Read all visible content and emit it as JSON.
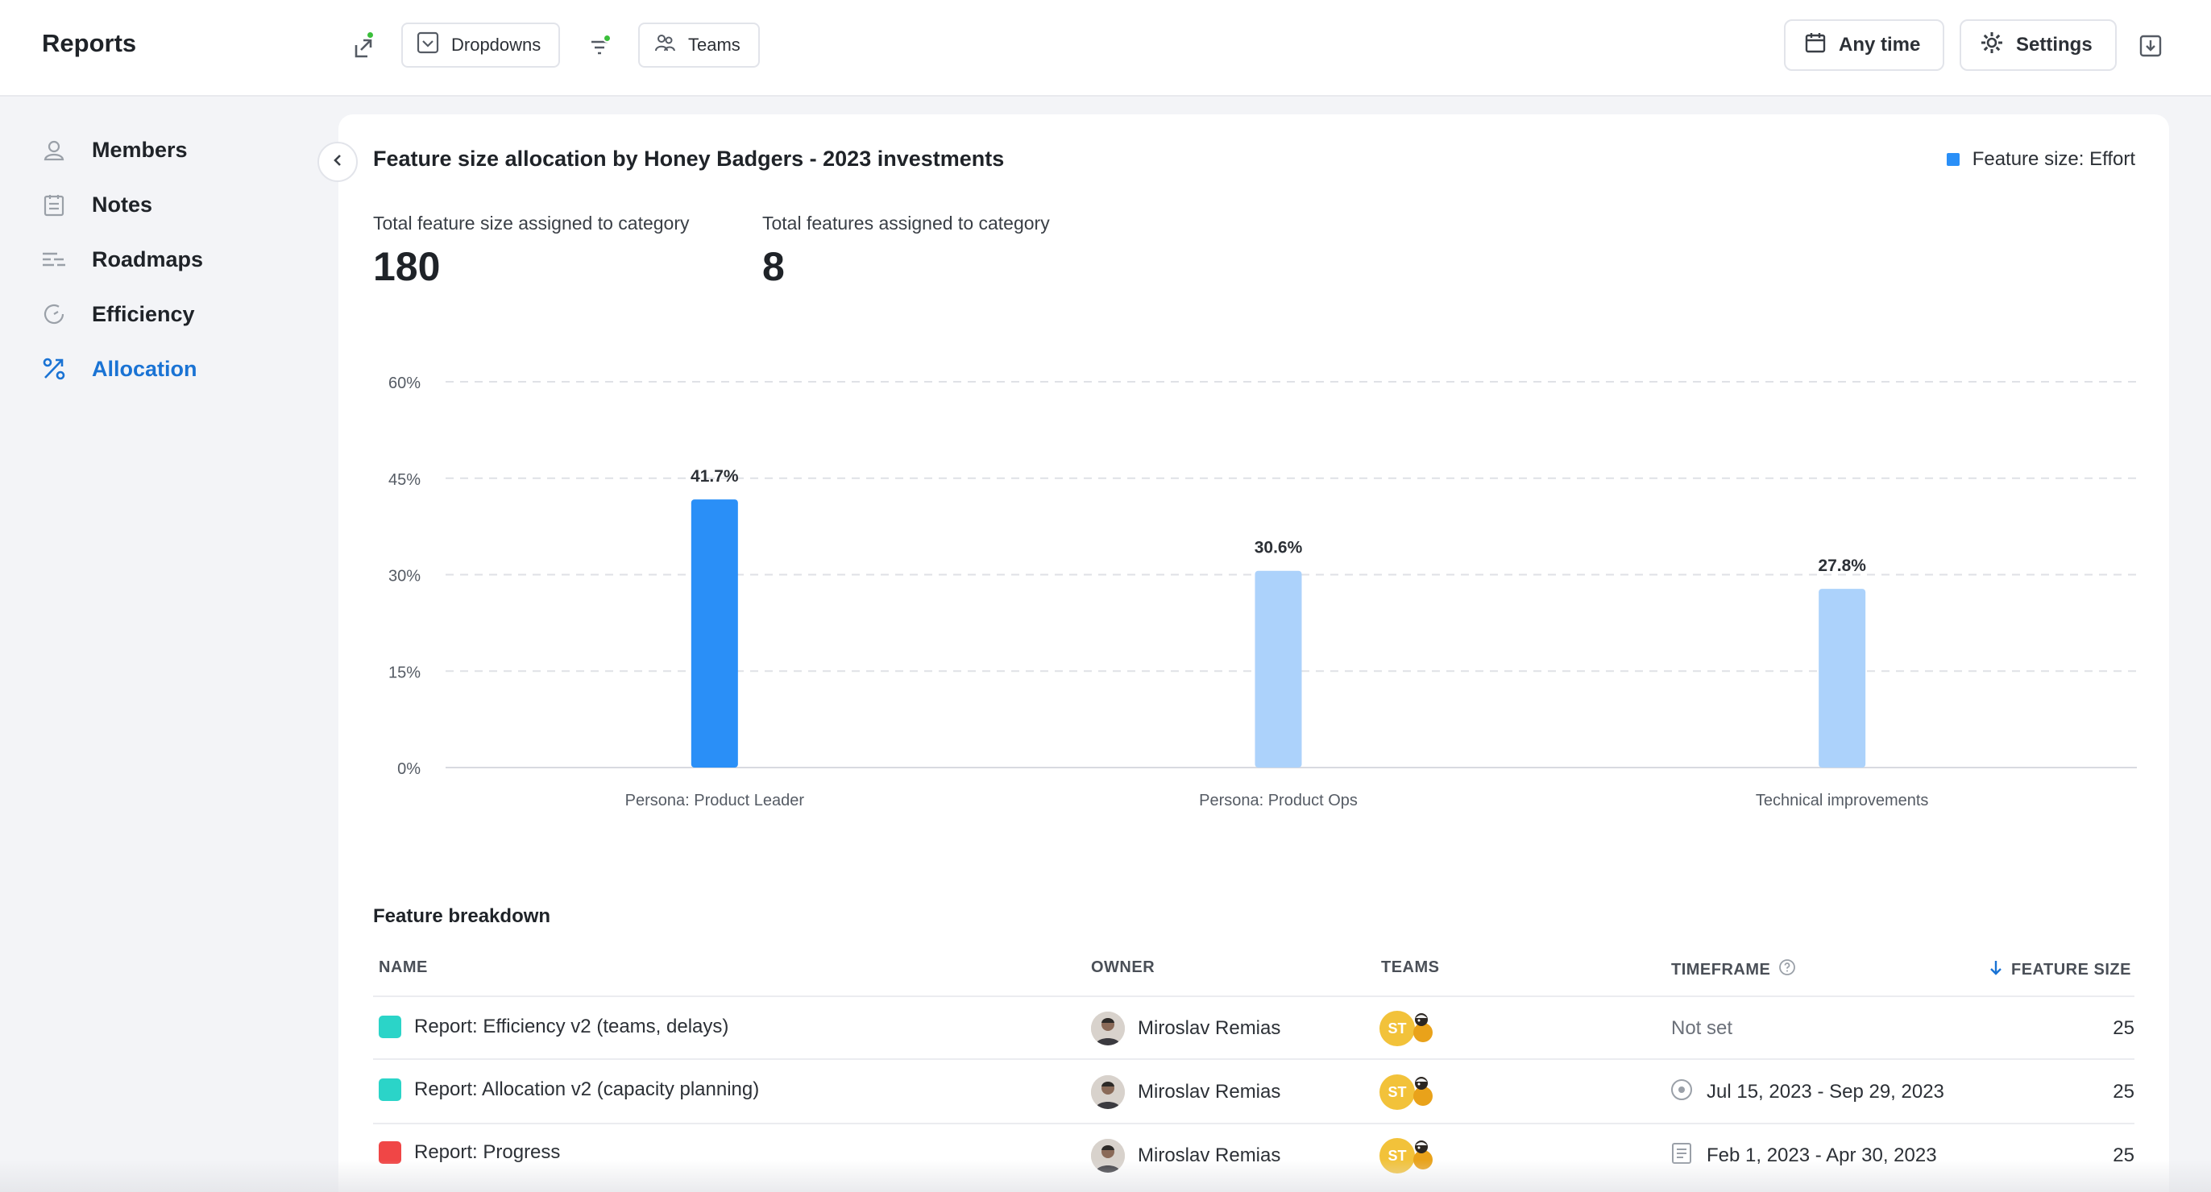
{
  "app": {
    "title": "Reports"
  },
  "toolbar": {
    "dropdowns_label": "Dropdowns",
    "teams_label": "Teams",
    "time_label": "Any time",
    "settings_label": "Settings"
  },
  "sidebar": {
    "items": [
      {
        "label": "Members",
        "icon": "user-icon"
      },
      {
        "label": "Notes",
        "icon": "notes-icon"
      },
      {
        "label": "Roadmaps",
        "icon": "roadmap-icon"
      },
      {
        "label": "Efficiency",
        "icon": "gauge-icon"
      },
      {
        "label": "Allocation",
        "icon": "percent-icon",
        "active": true
      }
    ]
  },
  "card": {
    "title": "Feature size allocation by Honey Badgers - 2023 investments",
    "legend": "Feature size: Effort",
    "stats": [
      {
        "label": "Total feature size assigned to category",
        "value": "180"
      },
      {
        "label": "Total features assigned to category",
        "value": "8"
      }
    ]
  },
  "chart_data": {
    "type": "bar",
    "categories": [
      "Persona: Product Leader",
      "Persona: Product Ops",
      "Technical improvements"
    ],
    "values": [
      41.7,
      30.6,
      27.8
    ],
    "value_labels": [
      "41.7%",
      "30.6%",
      "27.8%"
    ],
    "yticks": [
      "0%",
      "15%",
      "30%",
      "45%",
      "60%"
    ],
    "ylim": [
      0,
      60
    ],
    "grid": "dashed horizontal",
    "colors": [
      "#2a8ff7",
      "#acd2fb",
      "#acd2fb"
    ]
  },
  "table": {
    "title": "Feature breakdown",
    "headers": {
      "name": "NAME",
      "owner": "OWNER",
      "teams": "TEAMS",
      "timeframe": "TIMEFRAME",
      "feature_size": "FEATURE SIZE"
    },
    "rows": [
      {
        "name": "Report: Efficiency v2 (teams, delays)",
        "color": "#2bd4c8",
        "owner": "Miroslav Remias",
        "team": "ST",
        "timeframe": "Not set",
        "timeframe_icon": "",
        "size": "25"
      },
      {
        "name": "Report: Allocation v2 (capacity planning)",
        "color": "#2bd4c8",
        "owner": "Miroslav Remias",
        "team": "ST",
        "timeframe": "Jul 15, 2023 - Sep 29, 2023",
        "timeframe_icon": "target-icon",
        "size": "25"
      },
      {
        "name": "Report: Progress",
        "color": "#f04646",
        "owner": "Miroslav Remias",
        "team": "ST",
        "timeframe": "Feb 1, 2023 - Apr 30, 2023",
        "timeframe_icon": "document-icon",
        "size": "25"
      }
    ]
  }
}
